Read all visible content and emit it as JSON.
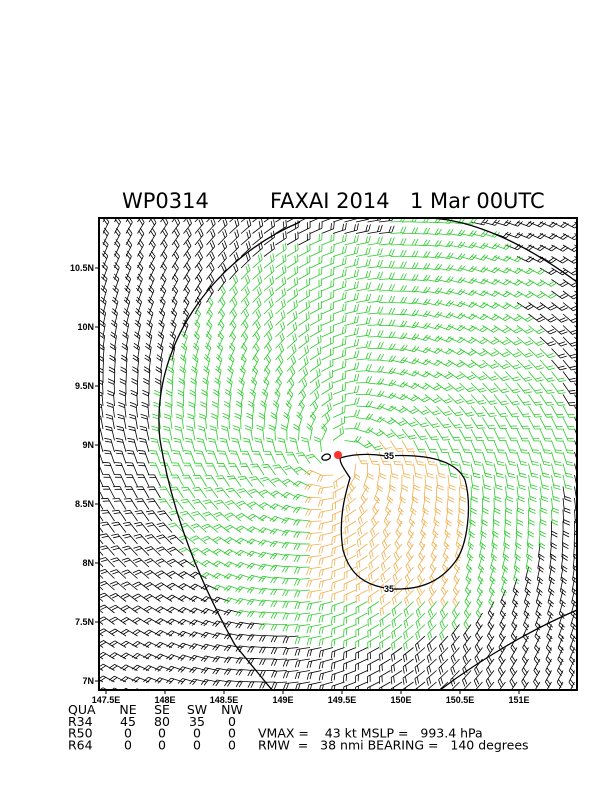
{
  "header": {
    "id": "WP0314",
    "storm": "FAXAI 2014",
    "time": "1 Mar 00UTC"
  },
  "axes": {
    "xticks": [
      {
        "value": 147.5,
        "label": "147.5E"
      },
      {
        "value": 148,
        "label": "148E"
      },
      {
        "value": 148.5,
        "label": "148.5E"
      },
      {
        "value": 149,
        "label": "149E"
      },
      {
        "value": 149.5,
        "label": "149.5E"
      },
      {
        "value": 150,
        "label": "150E"
      },
      {
        "value": 150.5,
        "label": "150.5E"
      },
      {
        "value": 151,
        "label": "151E"
      }
    ],
    "yticks": [
      {
        "value": 10.5,
        "label": "10.5N"
      },
      {
        "value": 10,
        "label": "10N"
      },
      {
        "value": 9.5,
        "label": "9.5N"
      },
      {
        "value": 9,
        "label": "9N"
      },
      {
        "value": 8.5,
        "label": "8.5N"
      },
      {
        "value": 8,
        "label": "8N"
      },
      {
        "value": 7.5,
        "label": "7.5N"
      },
      {
        "value": 7,
        "label": "7N"
      }
    ]
  },
  "contour_labels": [
    "35",
    "35"
  ],
  "table": {
    "header": [
      "QUA",
      "NE",
      "SE",
      "SW",
      "NW"
    ],
    "rows": [
      [
        "R34",
        "45",
        "80",
        "35",
        "0"
      ],
      [
        "R50",
        "0",
        "0",
        "0",
        "0"
      ],
      [
        "R64",
        "0",
        "0",
        "0",
        "0"
      ]
    ]
  },
  "stats": [
    "VMAX =    43 kt MSLP =   993.4 hPa",
    "RMW  =   38 nmi BEARING =   140 degrees"
  ]
}
